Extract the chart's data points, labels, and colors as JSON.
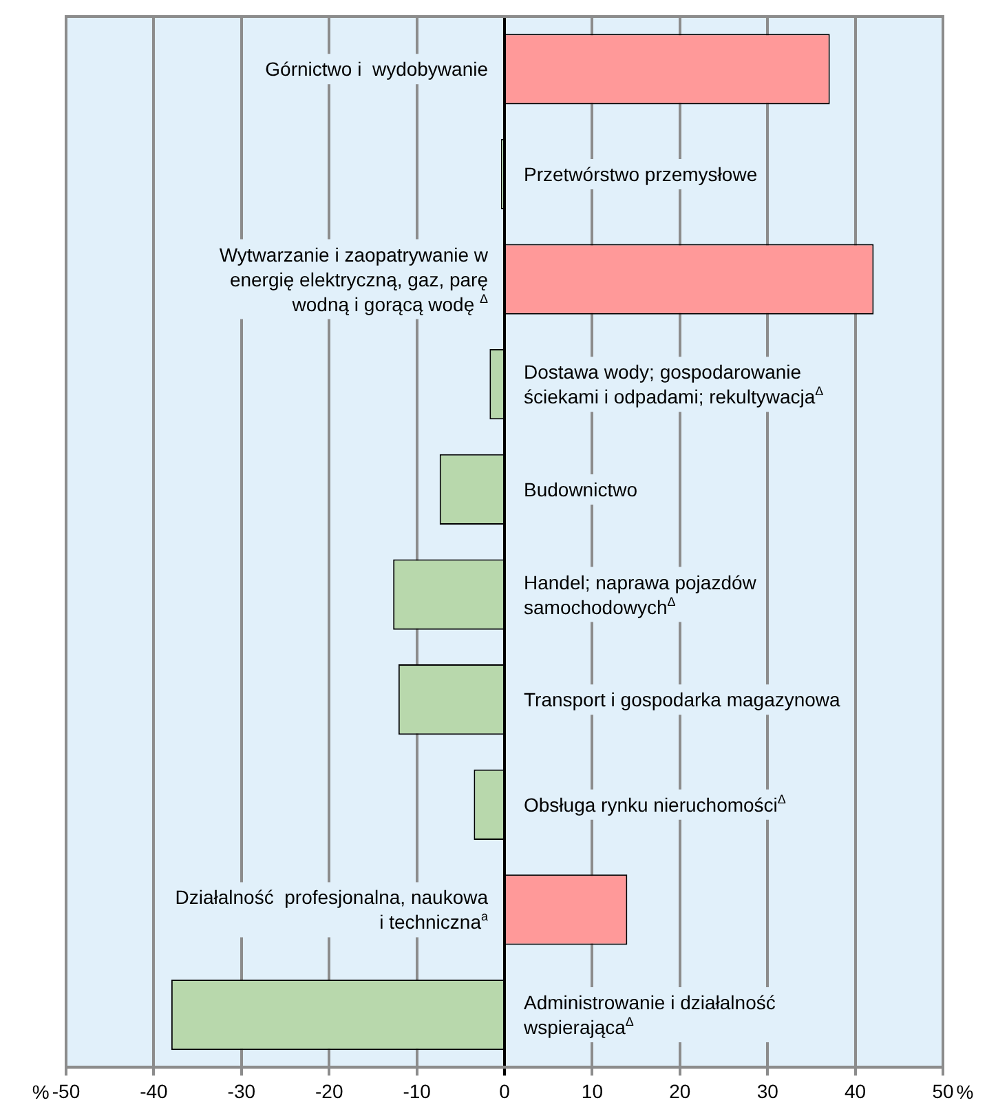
{
  "chart_data": {
    "type": "bar",
    "orientation": "horizontal",
    "xlabel": "%",
    "categories": [
      "Górnictwo i  wydobywanie",
      "Przetwórstwo przemysłowe",
      "Wytwarzanie i zaopatrywanie w energię elektryczną, gaz, parę wodną i gorącą wodę $^{Δ}$",
      "Dostawa wody; gospodarowanie ściekami i odpadami; rekultywacja$^{Δ}$",
      "Budownictwo",
      "Handel; naprawa pojazdów samochodowych$^{Δ}$",
      "Transport i gospodarka magazynowa",
      "Obsługa rynku nieruchomości$^{Δ}$",
      "Działalność  profesjonalna, naukowa i techniczna$^{a}$",
      "Administrowanie i działalność wspierająca$^{Δ}$"
    ],
    "values": [
      37.1,
      -0.4,
      42.1,
      -1.7,
      -7.4,
      -12.7,
      -12.1,
      -3.5,
      14.0,
      -38.0
    ],
    "colors": [
      "#ff9999",
      "#b8d8ac",
      "#ff9999",
      "#b8d8ac",
      "#b8d8ac",
      "#b8d8ac",
      "#b8d8ac",
      "#b8d8ac",
      "#ff9999",
      "#b8d8ac"
    ],
    "xlim": [
      -50,
      50
    ],
    "xticks": [
      -50,
      -40,
      -30,
      -20,
      -10,
      0,
      10,
      20,
      30,
      40,
      50
    ],
    "grid": "x",
    "legend": false
  }
}
